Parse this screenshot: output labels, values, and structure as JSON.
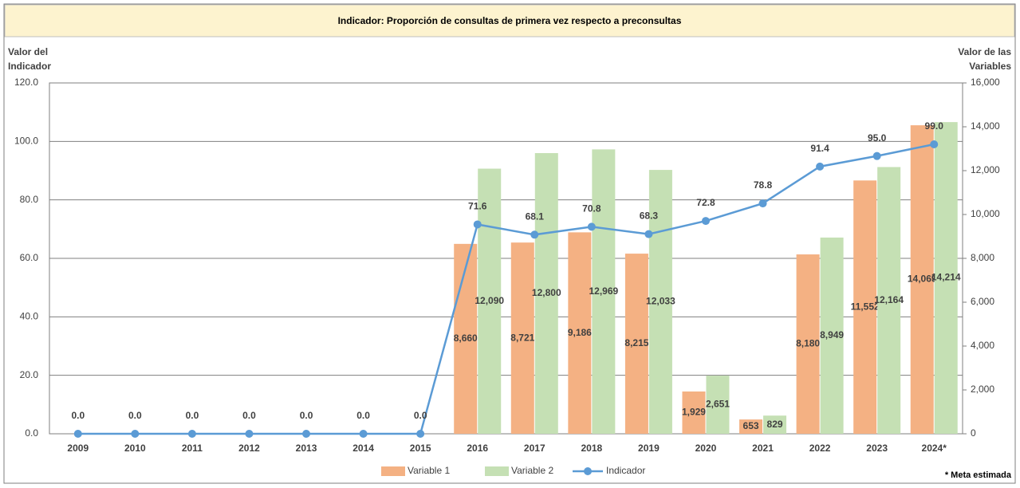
{
  "chart_data": {
    "type": "bar",
    "title": "Indicador: Proporción de consultas de primera vez respecto a preconsultas",
    "ylabel": [
      "Valor del",
      "Indicador"
    ],
    "y2label": [
      "Valor de las",
      "Variables"
    ],
    "note": "* Meta estimada",
    "categories": [
      "2009",
      "2010",
      "2011",
      "2012",
      "2013",
      "2014",
      "2015",
      "2016",
      "2017",
      "2018",
      "2019",
      "2020",
      "2021",
      "2022",
      "2023",
      "2024*"
    ],
    "ylim": [
      0,
      120
    ],
    "yticks": [
      {
        "value": 0,
        "label": "0.0"
      },
      {
        "value": 20,
        "label": "20.0"
      },
      {
        "value": 40,
        "label": "40.0"
      },
      {
        "value": 60,
        "label": "60.0"
      },
      {
        "value": 80,
        "label": "80.0"
      },
      {
        "value": 100,
        "label": "100.0"
      },
      {
        "value": 120,
        "label": "120.0"
      }
    ],
    "y2lim": [
      0,
      16000
    ],
    "y2ticks": [
      0,
      {
        "value": 2000,
        "label": "2,000"
      },
      {
        "value": 4000,
        "label": "4,000"
      },
      {
        "value": 6000,
        "label": "6,000"
      },
      {
        "value": 8000,
        "label": "8,000"
      },
      {
        "value": 10000,
        "label": "10,000"
      },
      {
        "value": 12000,
        "label": "12,000"
      },
      {
        "value": 14000,
        "label": "14,000"
      },
      {
        "value": 16000,
        "label": "16,000"
      }
    ],
    "grid": true,
    "legend": "bottom",
    "series": [
      {
        "name": "Variable 1",
        "color": "#f4b183",
        "axis": "y2",
        "values": [
          null,
          null,
          null,
          null,
          null,
          null,
          null,
          8660,
          8721,
          9186,
          8215,
          1929,
          653,
          8180,
          11552,
          14069
        ],
        "value_labels": [
          null,
          null,
          null,
          null,
          null,
          null,
          null,
          "8,660",
          "8,721",
          "9,186",
          "8,215",
          "1,929",
          "653",
          "8,180",
          "11,552",
          "14,069"
        ]
      },
      {
        "name": "Variable 2",
        "color": "#c5e0b4",
        "axis": "y2",
        "values": [
          null,
          null,
          null,
          null,
          null,
          null,
          null,
          12090,
          12800,
          12969,
          12033,
          2651,
          829,
          8949,
          12164,
          14214
        ],
        "value_labels": [
          null,
          null,
          null,
          null,
          null,
          null,
          null,
          "12,090",
          "12,800",
          "12,969",
          "12,033",
          "2,651",
          "829",
          "8,949",
          "12,164",
          "14,214"
        ]
      },
      {
        "name": "Indicador",
        "type": "line",
        "color": "#5b9bd5",
        "axis": "y",
        "values": [
          0,
          0,
          0,
          0,
          0,
          0,
          0,
          71.6,
          68.1,
          70.8,
          68.3,
          72.8,
          78.8,
          91.4,
          95,
          99
        ],
        "value_labels": [
          "0.0",
          "0.0",
          "0.0",
          "0.0",
          "0.0",
          "0.0",
          "0.0",
          "71.6",
          "68.1",
          "70.8",
          "68.3",
          "72.8",
          "78.8",
          "91.4",
          "95.0",
          "99.0"
        ]
      }
    ]
  }
}
